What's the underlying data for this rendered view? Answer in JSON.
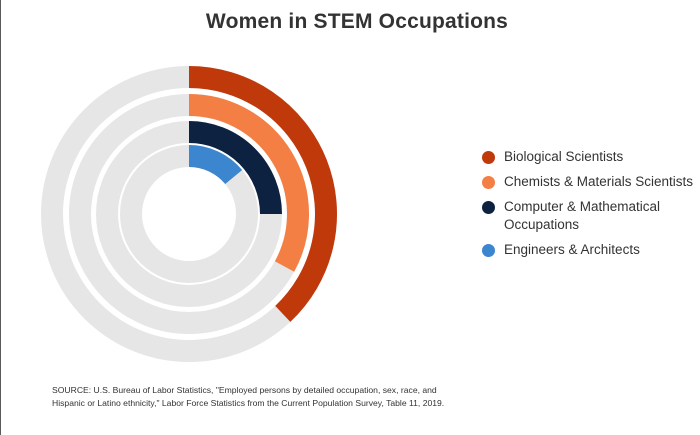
{
  "chart_data": {
    "type": "radial-bar",
    "title": "Women in STEM Occupations",
    "series": [
      {
        "name": "Biological Scientists",
        "value": 38,
        "color": "#c0390b"
      },
      {
        "name": "Chemists & Materials Scientists",
        "value": 33,
        "color": "#f47f45"
      },
      {
        "name": "Computer & Mathematical Occupations",
        "value": 25,
        "color": "#0d2240"
      },
      {
        "name": "Engineers & Architects",
        "value": 14,
        "color": "#3b86cf"
      }
    ],
    "max_value": 100,
    "track_color": "#e6e6e6",
    "source": "SOURCE: U.S. Bureau of Labor Statistics, \"Employed persons by detailed occupation, sex, race, and Hispanic or Latino ethnicity,\" Labor Force Statistics from the Current Population Survey, Table 11, 2019."
  }
}
